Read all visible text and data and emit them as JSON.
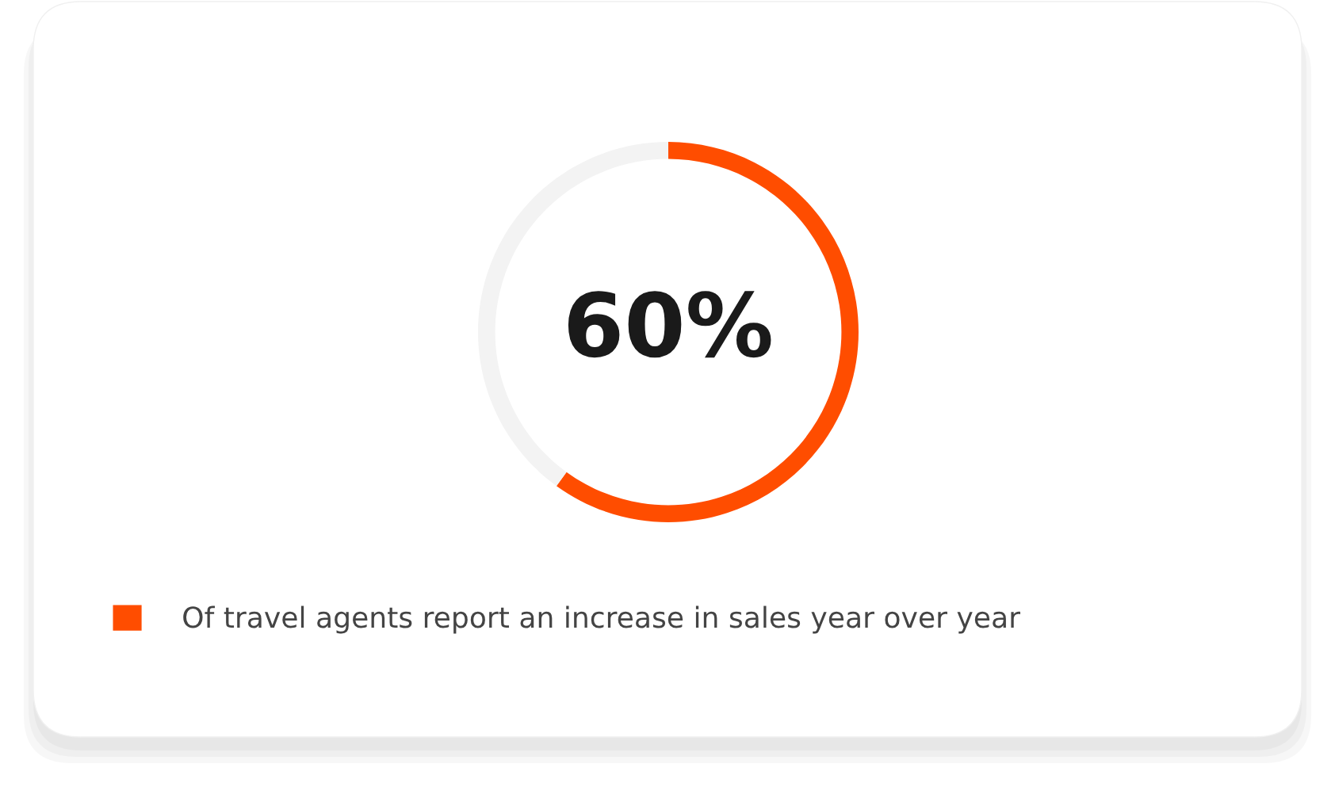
{
  "chart_data": {
    "type": "donut",
    "categories": [
      "Of travel agents report an increase in sales year over year",
      null
    ],
    "values": [
      60,
      40
    ],
    "colors": [
      "#ff4d00",
      "#f3f3f3"
    ],
    "annotations": [
      "60%"
    ],
    "legend": "bottom left"
  }
}
